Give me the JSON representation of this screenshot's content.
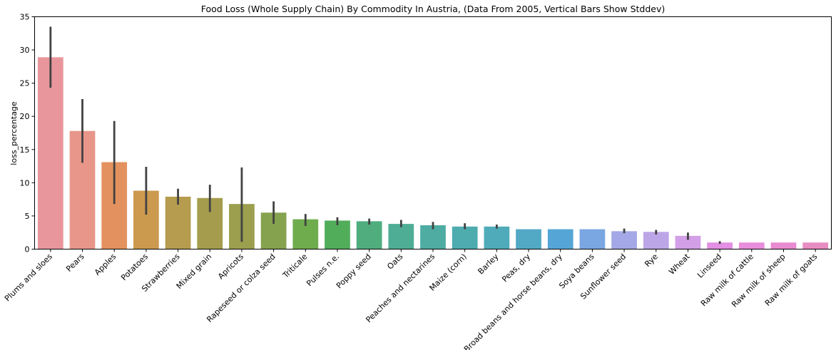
{
  "chart_data": {
    "type": "bar",
    "title": "Food Loss (Whole Supply Chain) By Commodity In Austria, (Data From 2005, Vertical Bars Show Stddev)",
    "xlabel": "",
    "ylabel": "loss_percentage",
    "ylim": [
      0,
      35
    ],
    "yticks": [
      0,
      5,
      10,
      15,
      20,
      25,
      30,
      35
    ],
    "grid": false,
    "categories": [
      "Plums and sloes",
      "Pears",
      "Apples",
      "Potatoes",
      "Strawberries",
      "Mixed grain",
      "Apricots",
      "Rapeseed or colza seed",
      "Triticale",
      "Pulses n.e.",
      "Poppy seed",
      "Oats",
      "Peaches and nectarines",
      "Maize (corn)",
      "Barley",
      "Peas, dry",
      "Broad beans and horse beans, dry",
      "Soya beans",
      "Sunflower seed",
      "Rye",
      "Wheat",
      "Linseed",
      "Raw milk of cattle",
      "Raw milk of sheep",
      "Raw milk of goats"
    ],
    "values": [
      28.9,
      17.8,
      13.1,
      8.8,
      7.9,
      7.7,
      6.8,
      5.5,
      4.5,
      4.3,
      4.2,
      3.8,
      3.6,
      3.4,
      3.4,
      3.0,
      3.0,
      3.0,
      2.7,
      2.6,
      2.0,
      1.0,
      1.0,
      1.0,
      1.0
    ],
    "error_low": [
      24.3,
      13.0,
      6.8,
      5.2,
      6.7,
      5.6,
      1.1,
      3.8,
      3.5,
      3.6,
      3.7,
      3.3,
      3.0,
      3.0,
      3.1,
      3.0,
      3.0,
      3.0,
      2.4,
      2.2,
      1.4,
      0.8,
      1.0,
      1.0,
      1.0
    ],
    "error_high": [
      33.5,
      22.6,
      19.3,
      12.4,
      9.1,
      9.7,
      12.3,
      7.2,
      5.3,
      4.8,
      4.6,
      4.4,
      4.1,
      3.9,
      3.7,
      3.0,
      3.0,
      3.0,
      3.1,
      2.9,
      2.5,
      1.2,
      1.0,
      1.0,
      1.0
    ],
    "colors": [
      "#e8969c",
      "#e9968a",
      "#e3925f",
      "#cc9a4f",
      "#b69c4f",
      "#a59d4d",
      "#9b9f4e",
      "#85a24e",
      "#6fac4e",
      "#52ad5b",
      "#4fad7e",
      "#4ead95",
      "#4eaca3",
      "#4eabae",
      "#4fabb9",
      "#52a9c6",
      "#55a6d6",
      "#7aa7e2",
      "#a4a8e6",
      "#bca6e7",
      "#d39fe7",
      "#e38fe3",
      "#e88ddc",
      "#e98bd0",
      "#e88dc2"
    ],
    "error_bar_color": "#424242"
  }
}
